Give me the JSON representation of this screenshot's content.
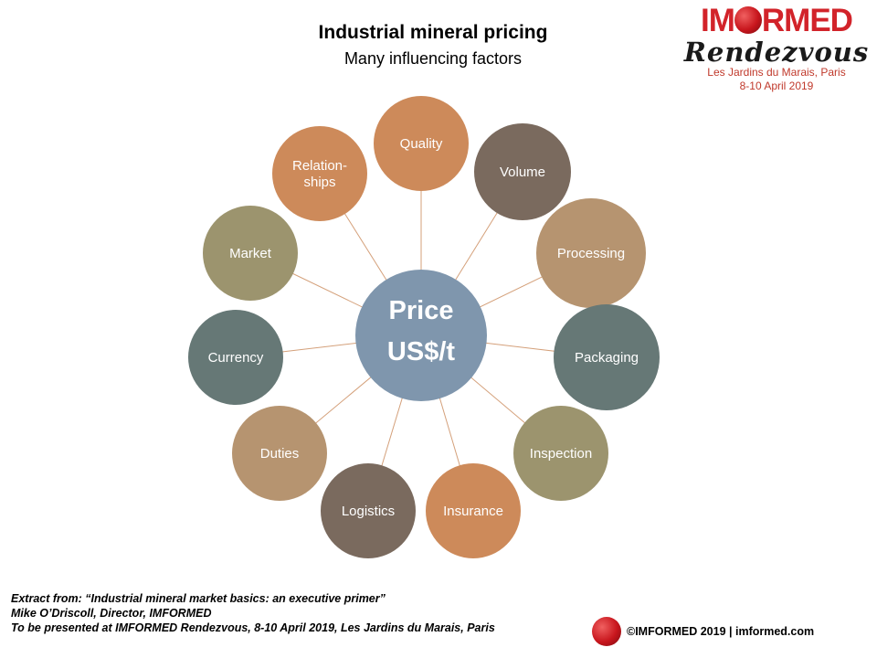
{
  "header": {
    "title": "Industrial mineral pricing",
    "subtitle": "Many influencing factors"
  },
  "brand": {
    "name_part1": "IM",
    "name_part2": "RMED",
    "event": "Rendezvous",
    "venue": "Les Jardins du Marais, Paris",
    "dates": "8-10 April 2019"
  },
  "diagram": {
    "center": {
      "line1": "Price",
      "line2": "US$/t",
      "color": "#7f96ad"
    },
    "connector_color": "#d4a07a",
    "factors": [
      {
        "name": "quality",
        "lines": [
          "Quality"
        ],
        "color": "#cd8a5a"
      },
      {
        "name": "volume",
        "lines": [
          "Volume"
        ],
        "color": "#7a6a5e"
      },
      {
        "name": "processing",
        "lines": [
          "Processing"
        ],
        "color": "#b69470"
      },
      {
        "name": "packaging",
        "lines": [
          "Packaging"
        ],
        "color": "#667876"
      },
      {
        "name": "inspection",
        "lines": [
          "Inspection"
        ],
        "color": "#9c946e"
      },
      {
        "name": "insurance",
        "lines": [
          "Insurance"
        ],
        "color": "#cd8a5a"
      },
      {
        "name": "logistics",
        "lines": [
          "Logistics"
        ],
        "color": "#7a6a5e"
      },
      {
        "name": "duties",
        "lines": [
          "Duties"
        ],
        "color": "#b69470"
      },
      {
        "name": "currency",
        "lines": [
          "Currency"
        ],
        "color": "#667876"
      },
      {
        "name": "market",
        "lines": [
          "Market"
        ],
        "color": "#9c946e"
      },
      {
        "name": "relationships",
        "lines": [
          "Relation-",
          "ships"
        ],
        "color": "#cd8a5a"
      }
    ]
  },
  "footer": {
    "line1": "Extract from: “Industrial mineral market basics: an executive primer”",
    "line2": "Mike O’Driscoll, Director, IMFORMED",
    "line3": "To be presented at IMFORMED Rendezvous, 8-10 April 2019, Les Jardins du Marais, Paris",
    "copyright": "©IMFORMED 2019  | imformed.com"
  }
}
